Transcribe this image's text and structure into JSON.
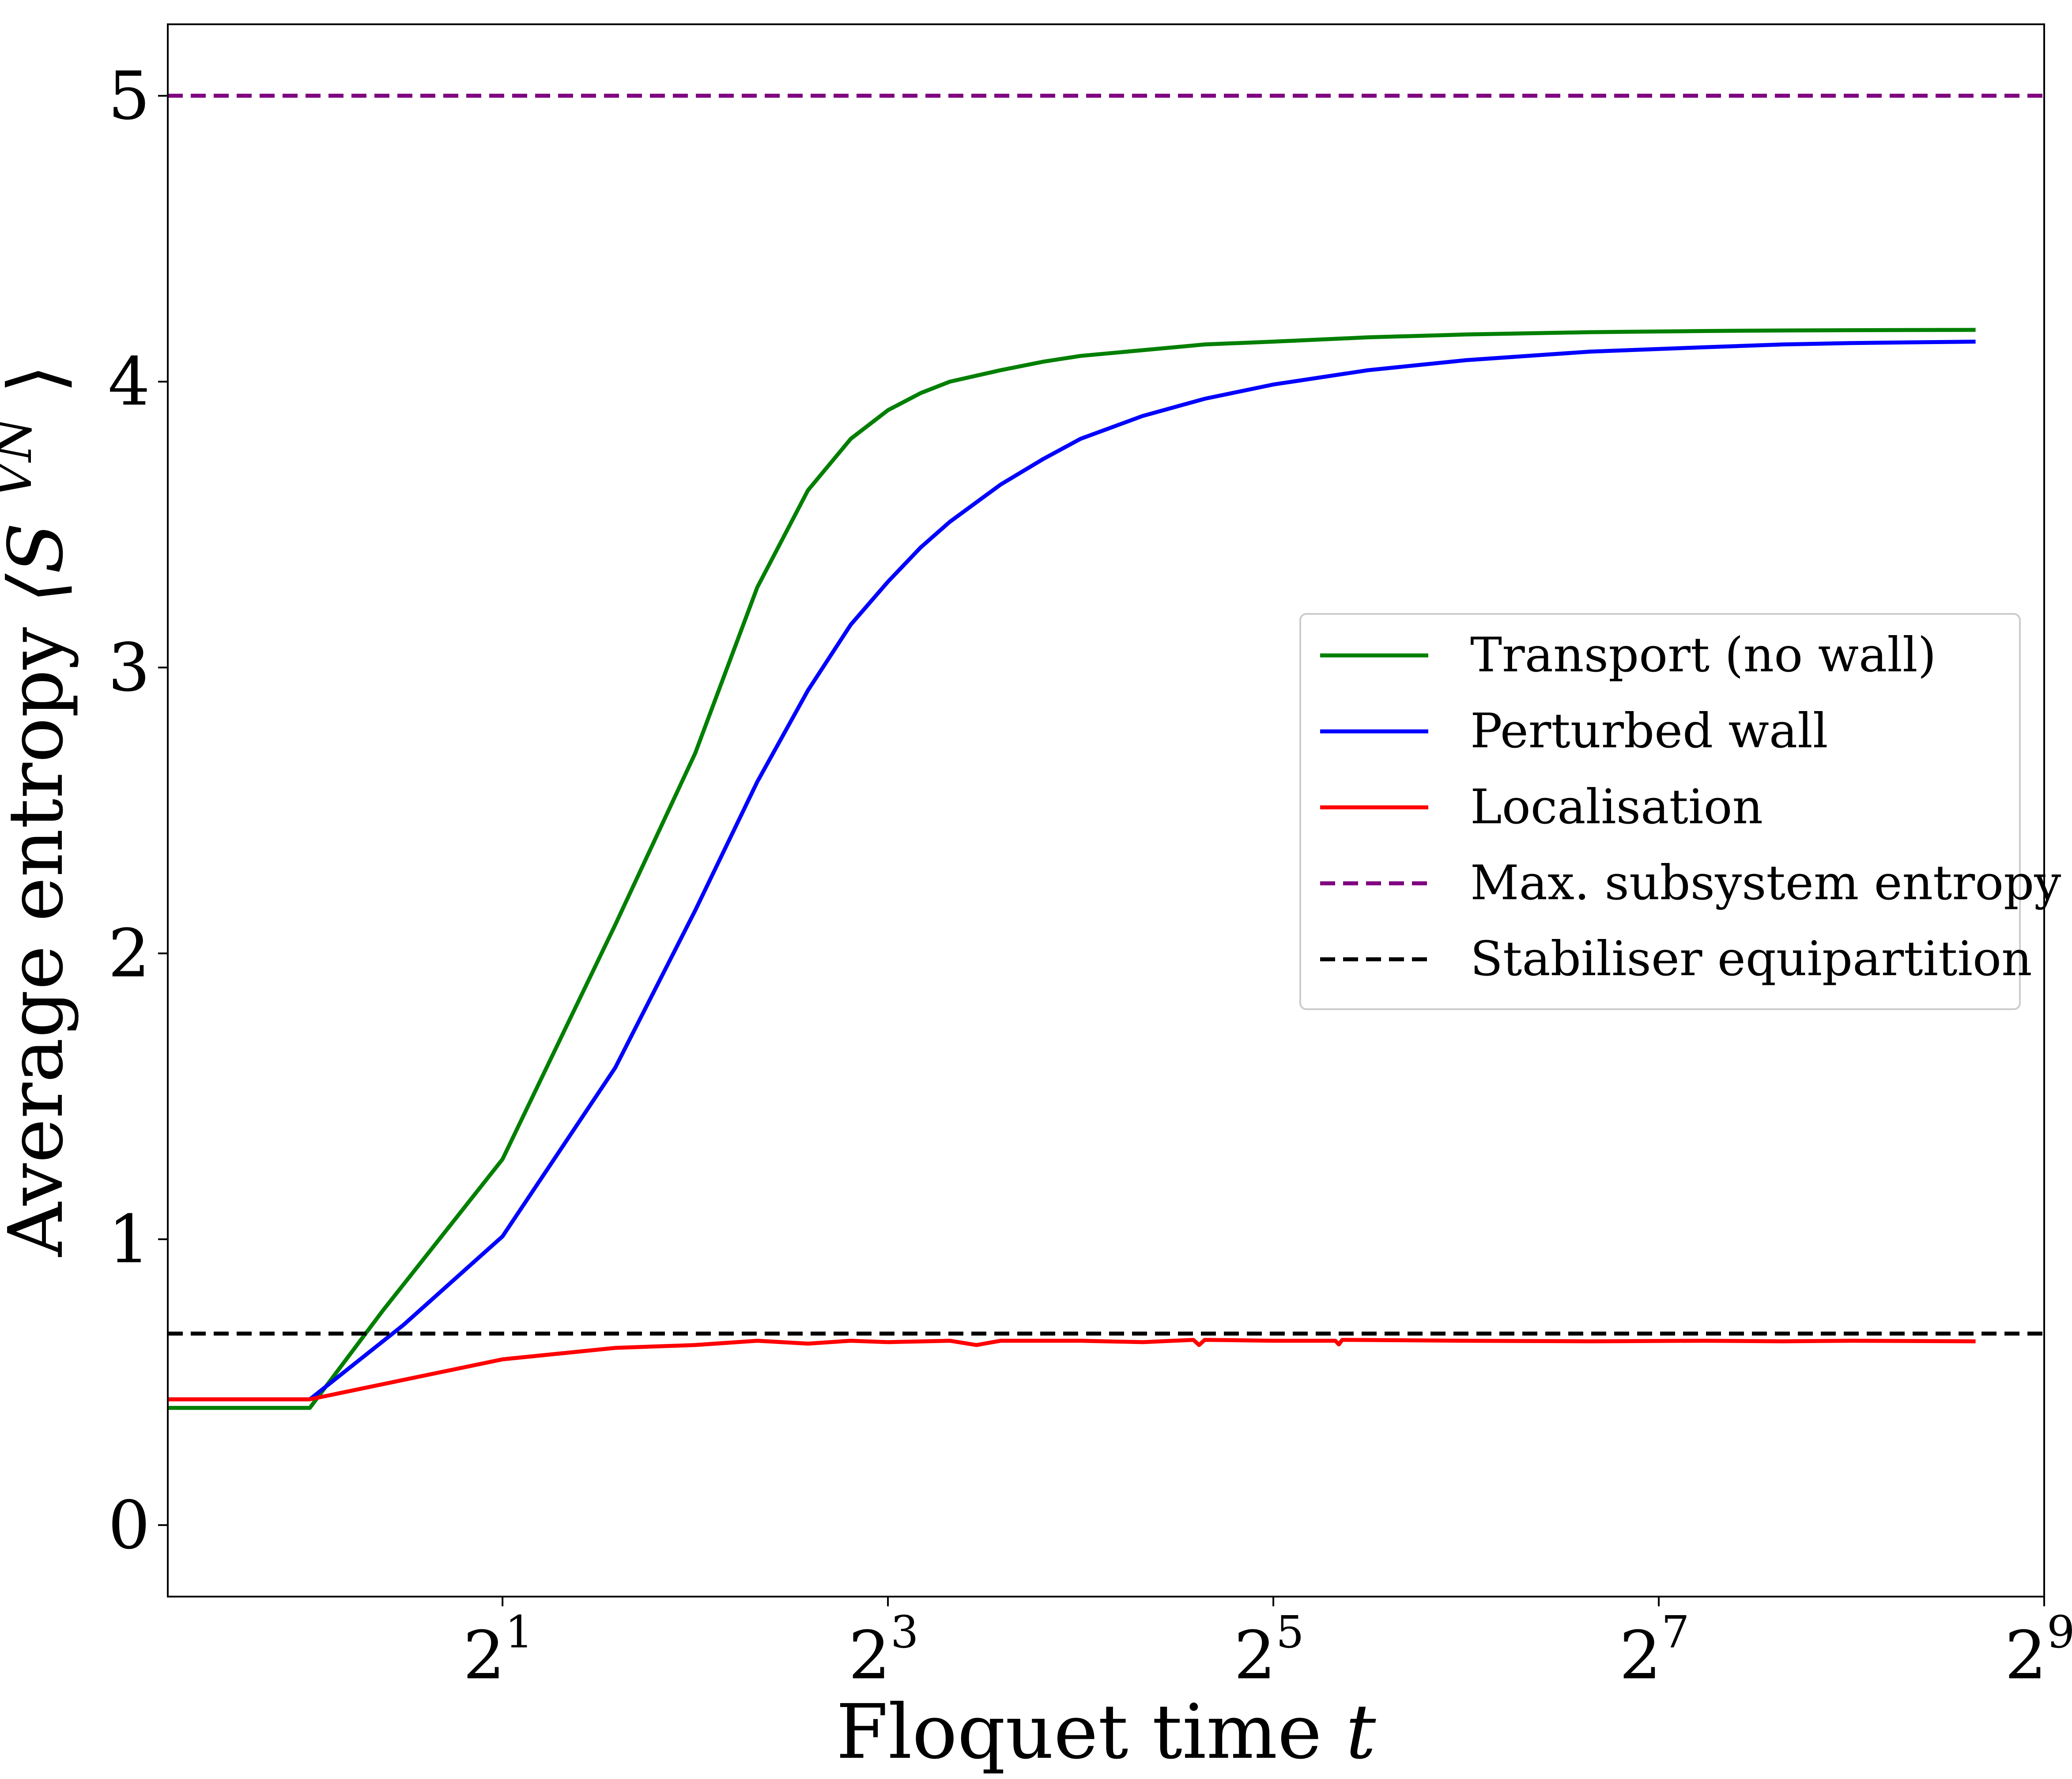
{
  "chart_data": {
    "type": "line",
    "title": "",
    "xlabel": "Floquet time",
    "xlabel_var": "t",
    "ylabel": "Average entropy",
    "ylabel_expr": "⟨S",
    "ylabel_sup": "VN",
    "ylabel_close": "⟩",
    "x_scale": "log2",
    "xlim": [
      0.6,
      512
    ],
    "ylim": [
      -0.25,
      5.25
    ],
    "x_ticks": [
      {
        "value": 2,
        "base": "2",
        "exp": "1"
      },
      {
        "value": 8,
        "base": "2",
        "exp": "3"
      },
      {
        "value": 32,
        "base": "2",
        "exp": "5"
      },
      {
        "value": 128,
        "base": "2",
        "exp": "7"
      },
      {
        "value": 512,
        "base": "2",
        "exp": "9"
      }
    ],
    "y_ticks": [
      0,
      1,
      2,
      3,
      4,
      5
    ],
    "grid": false,
    "legend_position": "center-right",
    "series": [
      {
        "name": "Transport (no wall)",
        "color": "#007f00",
        "style": "solid",
        "points": [
          [
            0.6,
            0.41
          ],
          [
            1,
            0.41
          ],
          [
            1.3,
            0.75
          ],
          [
            2,
            1.28
          ],
          [
            3,
            2.1
          ],
          [
            4,
            2.7
          ],
          [
            5,
            3.28
          ],
          [
            6,
            3.62
          ],
          [
            7,
            3.8
          ],
          [
            8,
            3.9
          ],
          [
            9,
            3.96
          ],
          [
            10,
            4.0
          ],
          [
            12,
            4.04
          ],
          [
            14,
            4.07
          ],
          [
            16,
            4.09
          ],
          [
            20,
            4.11
          ],
          [
            25,
            4.13
          ],
          [
            32,
            4.14
          ],
          [
            45,
            4.155
          ],
          [
            64,
            4.165
          ],
          [
            100,
            4.173
          ],
          [
            150,
            4.177
          ],
          [
            200,
            4.179
          ],
          [
            256,
            4.18
          ],
          [
            400,
            4.181
          ]
        ]
      },
      {
        "name": "Perturbed wall",
        "color": "#0000ff",
        "style": "solid",
        "points": [
          [
            0.6,
            0.44
          ],
          [
            1,
            0.44
          ],
          [
            1.4,
            0.7
          ],
          [
            2,
            1.01
          ],
          [
            3,
            1.6
          ],
          [
            4,
            2.15
          ],
          [
            5,
            2.6
          ],
          [
            6,
            2.92
          ],
          [
            7,
            3.15
          ],
          [
            8,
            3.3
          ],
          [
            9,
            3.42
          ],
          [
            10,
            3.51
          ],
          [
            12,
            3.64
          ],
          [
            14,
            3.73
          ],
          [
            16,
            3.8
          ],
          [
            20,
            3.88
          ],
          [
            25,
            3.94
          ],
          [
            32,
            3.99
          ],
          [
            45,
            4.04
          ],
          [
            64,
            4.075
          ],
          [
            100,
            4.105
          ],
          [
            150,
            4.12
          ],
          [
            200,
            4.13
          ],
          [
            256,
            4.135
          ],
          [
            400,
            4.14
          ]
        ]
      },
      {
        "name": "Localisation",
        "color": "#ff0000",
        "style": "solid",
        "points": [
          [
            0.6,
            0.44
          ],
          [
            1,
            0.44
          ],
          [
            2,
            0.58
          ],
          [
            3,
            0.62
          ],
          [
            4,
            0.63
          ],
          [
            5,
            0.645
          ],
          [
            6,
            0.635
          ],
          [
            7,
            0.645
          ],
          [
            8,
            0.64
          ],
          [
            10,
            0.645
          ],
          [
            11,
            0.63
          ],
          [
            12,
            0.645
          ],
          [
            16,
            0.645
          ],
          [
            20,
            0.64
          ],
          [
            24,
            0.648
          ],
          [
            24.5,
            0.63
          ],
          [
            25,
            0.648
          ],
          [
            32,
            0.645
          ],
          [
            40,
            0.645
          ],
          [
            40.5,
            0.632
          ],
          [
            41,
            0.648
          ],
          [
            64,
            0.645
          ],
          [
            100,
            0.643
          ],
          [
            150,
            0.645
          ],
          [
            200,
            0.643
          ],
          [
            256,
            0.645
          ],
          [
            400,
            0.643
          ]
        ]
      },
      {
        "name": "Max. subsystem entropy",
        "color": "#7f007f",
        "style": "dashed",
        "points": [
          [
            0.6,
            5.0
          ],
          [
            512,
            5.0
          ]
        ]
      },
      {
        "name": "Stabiliser equipartition",
        "color": "#000000",
        "style": "dashed",
        "points": [
          [
            0.6,
            0.67
          ],
          [
            512,
            0.67
          ]
        ]
      }
    ]
  }
}
